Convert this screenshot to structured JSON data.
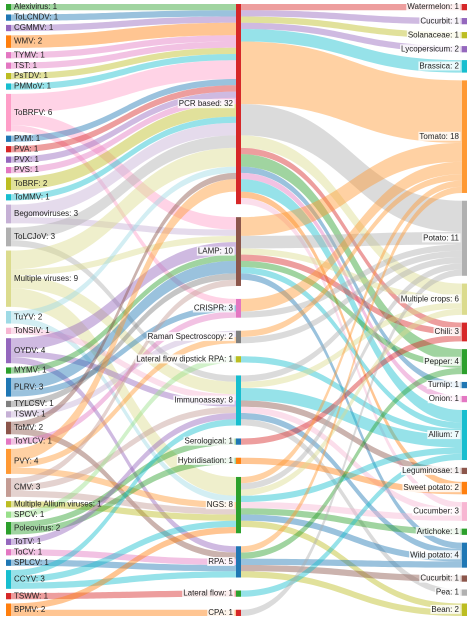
{
  "left_nodes": [
    {
      "label": "Alexivirus: 1",
      "color": "#2ca02c"
    },
    {
      "label": "ToLCNDV: 1",
      "color": "#1f77b4"
    },
    {
      "label": "CGMMV: 1",
      "color": "#9467bd"
    },
    {
      "label": "WMV: 2",
      "color": "#ff7f0e"
    },
    {
      "label": "TYMV: 1",
      "color": "#e377c2"
    },
    {
      "label": "TST: 1",
      "color": "#e377c2"
    },
    {
      "label": "PsTDV: 1",
      "color": "#bcbd22"
    },
    {
      "label": "PMMoV: 1",
      "color": "#17becf"
    },
    {
      "label": "ToBRFV: 6",
      "color": "#ff9ec8"
    },
    {
      "label": "PVM: 1",
      "color": "#1f77b4"
    },
    {
      "label": "PVA: 1",
      "color": "#d62728"
    },
    {
      "label": "PVX: 1",
      "color": "#9467bd"
    },
    {
      "label": "PVS: 1",
      "color": "#e377c2"
    },
    {
      "label": "ToBRF: 2",
      "color": "#bcbd22"
    },
    {
      "label": "ToMMV: 1",
      "color": "#17becf"
    },
    {
      "label": "Begomoviruses: 3",
      "color": "#c5b0d5"
    },
    {
      "label": "ToLCJoV: 3",
      "color": "#b0b0b0"
    },
    {
      "label": "Multiple viruses: 9",
      "color": "#dbdb8d"
    },
    {
      "label": "TuYV: 2",
      "color": "#9edae5"
    },
    {
      "label": "ToNSIV: 1",
      "color": "#f7b6d2"
    },
    {
      "label": "OYDV: 4",
      "color": "#9467bd"
    },
    {
      "label": "MYMV: 1",
      "color": "#2ca02c"
    },
    {
      "label": "PLRV: 3",
      "color": "#1f77b4"
    },
    {
      "label": "TYLCSV: 1",
      "color": "#7f7f7f"
    },
    {
      "label": "TSWV: 1",
      "color": "#c5b0d5"
    },
    {
      "label": "ToMV: 2",
      "color": "#8c564b"
    },
    {
      "label": "ToYLCV: 1",
      "color": "#e377c2"
    },
    {
      "label": "PVY: 4",
      "color": "#ff9933"
    },
    {
      "label": "CMV: 3",
      "color": "#c49c94"
    },
    {
      "label": "Multiple Allium viruses: 1",
      "color": "#bcbd22"
    },
    {
      "label": "SPCV: 1",
      "color": "#98df8a"
    },
    {
      "label": "Poleovirus: 2",
      "color": "#2ca02c"
    },
    {
      "label": "ToTV: 1",
      "color": "#9467bd"
    },
    {
      "label": "ToCV: 1",
      "color": "#e377c2"
    },
    {
      "label": "SPLCV: 1",
      "color": "#1f77b4"
    },
    {
      "label": "CCYV: 3",
      "color": "#17becf"
    },
    {
      "label": "TSWW: 1",
      "color": "#d62728"
    },
    {
      "label": "BPMV: 2",
      "color": "#ff7f0e"
    }
  ],
  "middle_nodes": [
    {
      "label": "PCR based: 32",
      "color": "#d62728"
    },
    {
      "label": "LAMP: 10",
      "color": "#8c564b"
    },
    {
      "label": "CRISPR: 3",
      "color": "#e377c2"
    },
    {
      "label": "Raman Spectroscopy: 2",
      "color": "#7f7f7f"
    },
    {
      "label": "Lateral flow dipstick RPA: 1",
      "color": "#bcbd22"
    },
    {
      "label": "Immunoassay: 8",
      "color": "#17becf"
    },
    {
      "label": "Serological: 1",
      "color": "#1f77b4"
    },
    {
      "label": "Hybridisation: 1",
      "color": "#ff7f0e"
    },
    {
      "label": "NGS: 8",
      "color": "#2ca02c"
    },
    {
      "label": "RPA: 5",
      "color": "#1f77b4"
    },
    {
      "label": "Lateral flow: 1",
      "color": "#2ca02c"
    },
    {
      "label": "CPA: 1",
      "color": "#d62728"
    }
  ],
  "right_nodes": [
    {
      "label": "Watermelon: 1",
      "color": "#d62728"
    },
    {
      "label": "Cucurbit: 1",
      "color": "#9467bd"
    },
    {
      "label": "Solanaceae: 1",
      "color": "#bcbd22"
    },
    {
      "label": "Lycopersicum: 2",
      "color": "#9467bd"
    },
    {
      "label": "Brassica: 2",
      "color": "#17becf"
    },
    {
      "label": "Tomato: 18",
      "color": "#ff9933"
    },
    {
      "label": "Potato: 11",
      "color": "#b0b0b0"
    },
    {
      "label": "Multiple crops: 6",
      "color": "#dbdb8d"
    },
    {
      "label": "Chili: 3",
      "color": "#d62728"
    },
    {
      "label": "Pepper: 4",
      "color": "#2ca02c"
    },
    {
      "label": "Turnip: 1",
      "color": "#1f77b4"
    },
    {
      "label": "Onion: 1",
      "color": "#e377c2"
    },
    {
      "label": "Allium: 7",
      "color": "#17becf"
    },
    {
      "label": "Leguminosae: 1",
      "color": "#8c564b"
    },
    {
      "label": "Sweet potato: 2",
      "color": "#ff7f0e"
    },
    {
      "label": "Cucumber: 3",
      "color": "#f7b6d2"
    },
    {
      "label": "Artichoke: 1",
      "color": "#2ca02c"
    },
    {
      "label": "Wild potato: 4",
      "color": "#1f77b4"
    },
    {
      "label": "Cucurbit: 1",
      "color": "#8c564b"
    },
    {
      "label": "Pea: 1",
      "color": "#b0b0b0"
    },
    {
      "label": "Bean: 2",
      "color": "#bcbd22"
    }
  ],
  "flows_left_to_middle": [
    [
      0,
      0,
      1
    ],
    [
      1,
      0,
      1
    ],
    [
      2,
      0,
      1
    ],
    [
      3,
      0,
      2
    ],
    [
      4,
      0,
      1
    ],
    [
      5,
      0,
      1
    ],
    [
      6,
      0,
      1
    ],
    [
      7,
      0,
      1
    ],
    [
      8,
      0,
      3
    ],
    [
      8,
      1,
      2
    ],
    [
      8,
      2,
      1
    ],
    [
      9,
      0,
      1
    ],
    [
      10,
      0,
      1
    ],
    [
      11,
      0,
      1
    ],
    [
      12,
      0,
      1
    ],
    [
      13,
      0,
      2
    ],
    [
      14,
      0,
      1
    ],
    [
      15,
      0,
      2
    ],
    [
      15,
      1,
      1
    ],
    [
      16,
      0,
      2
    ],
    [
      16,
      5,
      1
    ],
    [
      17,
      0,
      3
    ],
    [
      17,
      1,
      1
    ],
    [
      17,
      5,
      2
    ],
    [
      17,
      8,
      3
    ],
    [
      18,
      0,
      1
    ],
    [
      18,
      8,
      1
    ],
    [
      19,
      5,
      1
    ],
    [
      20,
      1,
      2
    ],
    [
      20,
      5,
      1
    ],
    [
      20,
      9,
      1
    ],
    [
      21,
      1,
      1
    ],
    [
      22,
      1,
      2
    ],
    [
      22,
      2,
      1
    ],
    [
      23,
      1,
      1
    ],
    [
      24,
      3,
      1
    ],
    [
      25,
      0,
      1
    ],
    [
      25,
      9,
      1
    ],
    [
      26,
      2,
      1
    ],
    [
      27,
      0,
      2
    ],
    [
      27,
      3,
      1
    ],
    [
      27,
      8,
      1
    ],
    [
      28,
      1,
      1
    ],
    [
      28,
      5,
      1
    ],
    [
      28,
      8,
      1
    ],
    [
      29,
      8,
      1
    ],
    [
      30,
      4,
      1
    ],
    [
      31,
      6,
      1
    ],
    [
      31,
      7,
      1
    ],
    [
      32,
      5,
      1
    ],
    [
      33,
      9,
      1
    ],
    [
      34,
      9,
      1
    ],
    [
      35,
      5,
      1
    ],
    [
      35,
      8,
      1
    ],
    [
      35,
      9,
      1
    ],
    [
      36,
      10,
      1
    ],
    [
      37,
      8,
      1
    ],
    [
      37,
      11,
      1
    ]
  ],
  "flows_middle_to_right": [
    [
      0,
      0,
      1
    ],
    [
      0,
      1,
      1
    ],
    [
      0,
      2,
      1
    ],
    [
      0,
      3,
      1
    ],
    [
      0,
      4,
      2
    ],
    [
      0,
      5,
      10
    ],
    [
      0,
      6,
      5
    ],
    [
      0,
      7,
      2
    ],
    [
      0,
      8,
      1
    ],
    [
      0,
      9,
      2
    ],
    [
      0,
      10,
      1
    ],
    [
      0,
      11,
      1
    ],
    [
      0,
      12,
      2
    ],
    [
      0,
      14,
      1
    ],
    [
      0,
      15,
      1
    ],
    [
      1,
      5,
      3
    ],
    [
      1,
      6,
      2
    ],
    [
      1,
      7,
      1
    ],
    [
      1,
      8,
      1
    ],
    [
      1,
      9,
      1
    ],
    [
      1,
      12,
      1
    ],
    [
      1,
      17,
      1
    ],
    [
      2,
      5,
      2
    ],
    [
      2,
      6,
      1
    ],
    [
      3,
      5,
      1
    ],
    [
      3,
      6,
      1
    ],
    [
      4,
      12,
      1
    ],
    [
      5,
      6,
      1
    ],
    [
      5,
      7,
      1
    ],
    [
      5,
      12,
      2
    ],
    [
      5,
      13,
      1
    ],
    [
      5,
      15,
      1
    ],
    [
      5,
      17,
      1
    ],
    [
      5,
      19,
      1
    ],
    [
      6,
      8,
      1
    ],
    [
      7,
      14,
      1
    ],
    [
      8,
      5,
      1
    ],
    [
      8,
      6,
      1
    ],
    [
      8,
      7,
      1
    ],
    [
      8,
      12,
      1
    ],
    [
      8,
      15,
      1
    ],
    [
      8,
      16,
      1
    ],
    [
      8,
      17,
      1
    ],
    [
      8,
      20,
      1
    ],
    [
      9,
      5,
      1
    ],
    [
      9,
      9,
      1
    ],
    [
      9,
      17,
      1
    ],
    [
      9,
      18,
      1
    ],
    [
      9,
      20,
      1
    ],
    [
      10,
      12,
      1
    ],
    [
      11,
      6,
      1
    ]
  ]
}
